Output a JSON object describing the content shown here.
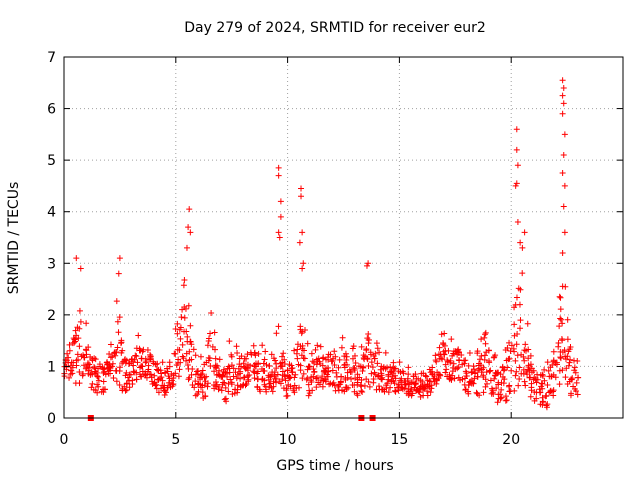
{
  "chart_data": {
    "type": "scatter",
    "title": "Day 279 of 2024, SRMTID for receiver eur2",
    "xlabel": "GPS time / hours",
    "ylabel": "SRMTID / TECUs",
    "xlim": [
      0,
      25
    ],
    "ylim": [
      0,
      7
    ],
    "x_ticks": [
      0,
      5,
      10,
      15,
      20
    ],
    "y_ticks": [
      0,
      1,
      2,
      3,
      4,
      5,
      6,
      7
    ],
    "grid": true,
    "marker": "plus",
    "color": "#ff0000",
    "series": [
      {
        "name": "SRMTID",
        "envelope": [
          [
            0.0,
            0.6,
            1.3
          ],
          [
            0.2,
            0.7,
            1.6
          ],
          [
            0.4,
            0.8,
            1.9
          ],
          [
            0.6,
            0.6,
            2.8
          ],
          [
            0.8,
            0.7,
            2.4
          ],
          [
            1.0,
            0.9,
            1.9
          ],
          [
            1.2,
            0.6,
            1.4
          ],
          [
            1.4,
            0.5,
            1.5
          ],
          [
            1.6,
            0.4,
            1.3
          ],
          [
            1.8,
            0.5,
            1.4
          ],
          [
            2.0,
            0.6,
            1.5
          ],
          [
            2.2,
            0.7,
            2.0
          ],
          [
            2.4,
            0.6,
            2.6
          ],
          [
            2.6,
            0.5,
            1.8
          ],
          [
            2.8,
            0.5,
            1.4
          ],
          [
            3.0,
            0.6,
            1.5
          ],
          [
            3.2,
            0.7,
            1.6
          ],
          [
            3.4,
            0.8,
            1.7
          ],
          [
            3.6,
            0.8,
            1.6
          ],
          [
            3.8,
            0.7,
            1.5
          ],
          [
            4.0,
            0.6,
            1.4
          ],
          [
            4.2,
            0.5,
            1.2
          ],
          [
            4.4,
            0.4,
            1.1
          ],
          [
            4.6,
            0.4,
            1.2
          ],
          [
            4.8,
            0.5,
            1.3
          ],
          [
            5.0,
            0.7,
            1.8
          ],
          [
            5.2,
            0.8,
            2.6
          ],
          [
            5.4,
            0.9,
            2.9
          ],
          [
            5.6,
            0.7,
            2.2
          ],
          [
            5.8,
            0.5,
            1.5
          ],
          [
            6.0,
            0.3,
            1.2
          ],
          [
            6.2,
            0.3,
            1.3
          ],
          [
            6.4,
            0.4,
            1.8
          ],
          [
            6.6,
            0.5,
            2.4
          ],
          [
            6.8,
            0.5,
            1.6
          ],
          [
            7.0,
            0.4,
            1.4
          ],
          [
            7.2,
            0.3,
            1.3
          ],
          [
            7.4,
            0.3,
            1.5
          ],
          [
            7.6,
            0.4,
            1.6
          ],
          [
            7.8,
            0.5,
            1.5
          ],
          [
            8.0,
            0.5,
            1.4
          ],
          [
            8.2,
            0.6,
            1.5
          ],
          [
            8.4,
            0.6,
            1.6
          ],
          [
            8.6,
            0.6,
            1.7
          ],
          [
            8.8,
            0.5,
            1.5
          ],
          [
            9.0,
            0.5,
            1.4
          ],
          [
            9.2,
            0.5,
            1.6
          ],
          [
            9.4,
            0.5,
            1.9
          ],
          [
            9.6,
            0.6,
            2.4
          ],
          [
            9.8,
            0.4,
            1.5
          ],
          [
            10.0,
            0.3,
            1.2
          ],
          [
            10.2,
            0.4,
            1.4
          ],
          [
            10.4,
            0.5,
            1.8
          ],
          [
            10.6,
            0.6,
            2.6
          ],
          [
            10.8,
            0.5,
            1.6
          ],
          [
            11.0,
            0.4,
            1.3
          ],
          [
            11.2,
            0.5,
            1.4
          ],
          [
            11.4,
            0.6,
            1.5
          ],
          [
            11.6,
            0.6,
            1.4
          ],
          [
            11.8,
            0.6,
            1.5
          ],
          [
            12.0,
            0.6,
            1.6
          ],
          [
            12.2,
            0.5,
            1.5
          ],
          [
            12.4,
            0.5,
            1.6
          ],
          [
            12.6,
            0.5,
            1.7
          ],
          [
            12.8,
            0.5,
            1.5
          ],
          [
            13.0,
            0.4,
            1.4
          ],
          [
            13.2,
            0.4,
            1.3
          ],
          [
            13.4,
            0.5,
            1.6
          ],
          [
            13.6,
            0.6,
            2.2
          ],
          [
            13.8,
            0.6,
            1.8
          ],
          [
            14.0,
            0.5,
            1.5
          ],
          [
            14.2,
            0.5,
            1.4
          ],
          [
            14.4,
            0.5,
            1.3
          ],
          [
            14.6,
            0.5,
            1.2
          ],
          [
            14.8,
            0.5,
            1.2
          ],
          [
            15.0,
            0.5,
            1.2
          ],
          [
            15.2,
            0.5,
            1.1
          ],
          [
            15.4,
            0.4,
            1.0
          ],
          [
            15.6,
            0.4,
            1.0
          ],
          [
            15.8,
            0.4,
            0.9
          ],
          [
            16.0,
            0.4,
            1.0
          ],
          [
            16.2,
            0.4,
            0.9
          ],
          [
            16.4,
            0.5,
            1.1
          ],
          [
            16.6,
            0.6,
            1.4
          ],
          [
            16.8,
            0.7,
            1.8
          ],
          [
            17.0,
            0.8,
            1.7
          ],
          [
            17.2,
            0.7,
            1.5
          ],
          [
            17.4,
            0.7,
            1.6
          ],
          [
            17.6,
            0.7,
            1.6
          ],
          [
            17.8,
            0.6,
            1.5
          ],
          [
            18.0,
            0.5,
            1.4
          ],
          [
            18.2,
            0.4,
            1.3
          ],
          [
            18.4,
            0.4,
            1.2
          ],
          [
            18.6,
            0.4,
            1.6
          ],
          [
            18.8,
            0.5,
            1.9
          ],
          [
            19.0,
            0.5,
            1.8
          ],
          [
            19.2,
            0.4,
            1.4
          ],
          [
            19.4,
            0.3,
            1.2
          ],
          [
            19.6,
            0.3,
            1.4
          ],
          [
            19.8,
            0.3,
            1.7
          ],
          [
            20.0,
            0.3,
            2.2
          ],
          [
            20.2,
            0.5,
            2.8
          ],
          [
            20.4,
            0.7,
            3.2
          ],
          [
            20.6,
            0.6,
            2.6
          ],
          [
            20.8,
            0.4,
            1.6
          ],
          [
            21.0,
            0.3,
            1.2
          ],
          [
            21.2,
            0.2,
            1.0
          ],
          [
            21.4,
            0.2,
            1.1
          ],
          [
            21.6,
            0.2,
            1.2
          ],
          [
            21.8,
            0.3,
            1.3
          ],
          [
            22.0,
            0.4,
            1.6
          ],
          [
            22.2,
            0.6,
            2.6
          ],
          [
            22.4,
            0.7,
            3.0
          ],
          [
            22.6,
            0.4,
            1.6
          ],
          [
            22.8,
            0.3,
            1.2
          ],
          [
            23.0,
            0.3,
            1.1
          ]
        ],
        "peaks": [
          [
            0.55,
            3.1
          ],
          [
            0.75,
            2.9
          ],
          [
            2.5,
            3.1
          ],
          [
            2.45,
            2.8
          ],
          [
            5.55,
            3.7
          ],
          [
            5.6,
            4.05
          ],
          [
            5.5,
            3.3
          ],
          [
            5.65,
            3.6
          ],
          [
            9.6,
            4.85
          ],
          [
            9.6,
            4.7
          ],
          [
            9.7,
            4.2
          ],
          [
            9.6,
            3.6
          ],
          [
            9.65,
            3.5
          ],
          [
            9.7,
            3.9
          ],
          [
            10.6,
            4.45
          ],
          [
            10.6,
            4.3
          ],
          [
            10.65,
            3.6
          ],
          [
            10.7,
            3.0
          ],
          [
            10.65,
            2.9
          ],
          [
            10.55,
            3.4
          ],
          [
            13.6,
            3.0
          ],
          [
            13.55,
            2.95
          ],
          [
            20.25,
            5.6
          ],
          [
            20.25,
            5.2
          ],
          [
            20.3,
            4.9
          ],
          [
            20.25,
            4.55
          ],
          [
            20.2,
            4.5
          ],
          [
            20.3,
            3.8
          ],
          [
            20.5,
            3.3
          ],
          [
            20.6,
            3.6
          ],
          [
            20.4,
            3.4
          ],
          [
            22.3,
            6.55
          ],
          [
            22.35,
            6.4
          ],
          [
            22.3,
            6.25
          ],
          [
            22.35,
            6.1
          ],
          [
            22.3,
            5.9
          ],
          [
            22.4,
            5.5
          ],
          [
            22.35,
            5.1
          ],
          [
            22.3,
            4.75
          ],
          [
            22.4,
            4.5
          ],
          [
            22.35,
            4.1
          ],
          [
            22.4,
            3.6
          ],
          [
            22.3,
            3.2
          ]
        ],
        "zero_markers": [
          1.2,
          13.3,
          13.8
        ]
      }
    ]
  }
}
